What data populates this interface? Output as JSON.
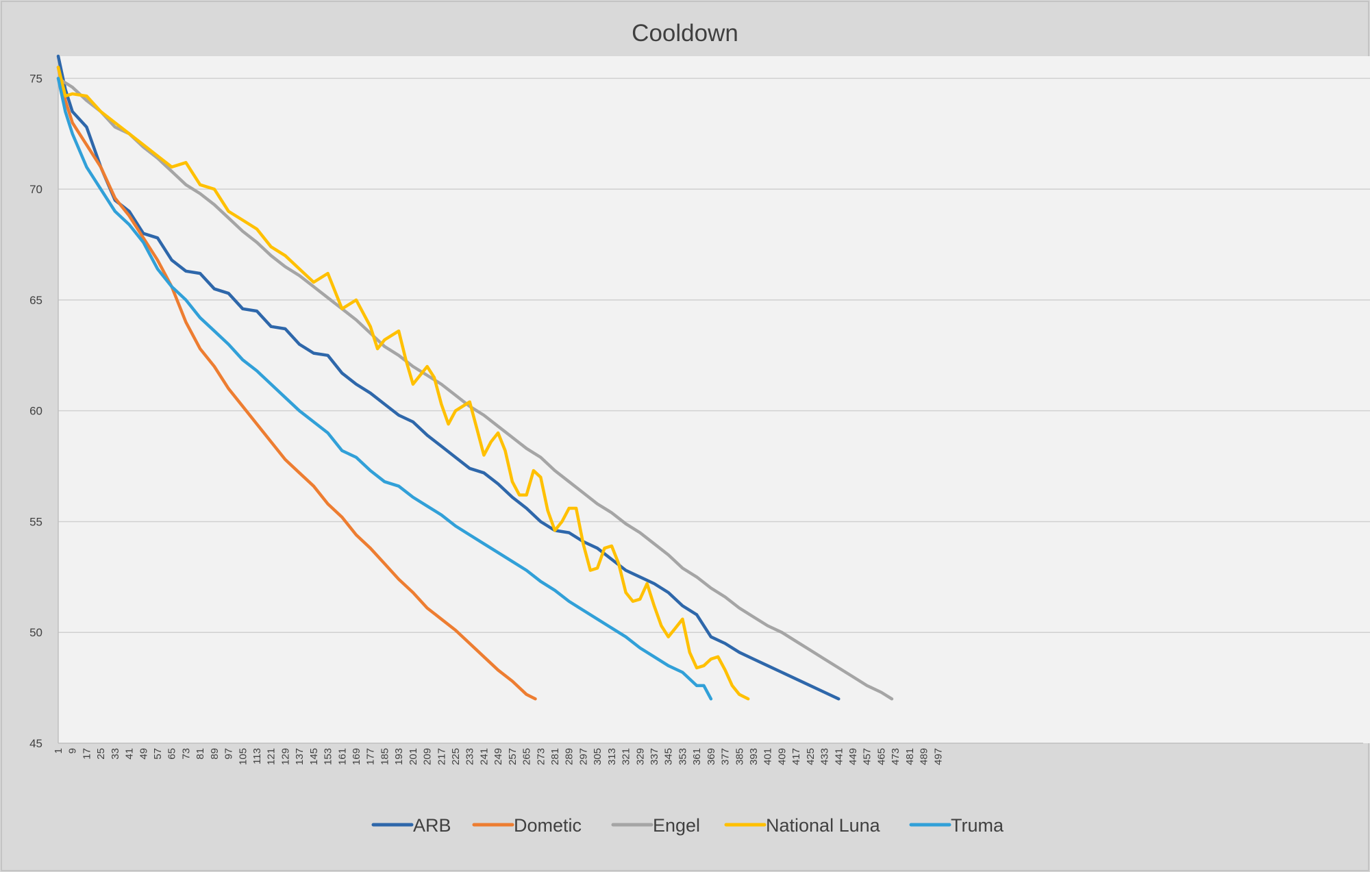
{
  "chart_data": {
    "type": "line",
    "title": "Cooldown",
    "xlabel": "",
    "ylabel": "",
    "xlim": [
      1,
      505
    ],
    "ylim": [
      45,
      76
    ],
    "y_ticks": [
      45,
      50,
      55,
      60,
      65,
      70,
      75
    ],
    "x_ticks": [
      1,
      9,
      17,
      25,
      33,
      41,
      49,
      57,
      65,
      73,
      81,
      89,
      97,
      105,
      113,
      121,
      129,
      137,
      145,
      153,
      161,
      169,
      177,
      185,
      193,
      201,
      209,
      217,
      225,
      233,
      241,
      249,
      257,
      265,
      273,
      281,
      289,
      297,
      305,
      313,
      321,
      329,
      337,
      345,
      353,
      361,
      369,
      377,
      385,
      393,
      401,
      409,
      417,
      425,
      433,
      441,
      449,
      457,
      465,
      473,
      481,
      489,
      497
    ],
    "grid": true,
    "legend_position": "bottom",
    "series": [
      {
        "name": "ARB",
        "color": "#2e67aa",
        "x": [
          1,
          5,
          9,
          17,
          25,
          33,
          41,
          49,
          57,
          65,
          73,
          81,
          89,
          97,
          105,
          113,
          121,
          129,
          137,
          145,
          153,
          161,
          169,
          177,
          185,
          193,
          201,
          209,
          217,
          225,
          233,
          241,
          249,
          257,
          265,
          273,
          281,
          289,
          297,
          305,
          313,
          321,
          329,
          337,
          345,
          353,
          361,
          369,
          377,
          385,
          393,
          401,
          409,
          417,
          425,
          433,
          441
        ],
        "y": [
          76,
          74.5,
          73.5,
          72.8,
          71,
          69.5,
          69,
          68,
          67.8,
          66.8,
          66.3,
          66.2,
          65.5,
          65.3,
          64.6,
          64.5,
          63.8,
          63.7,
          63,
          62.6,
          62.5,
          61.7,
          61.2,
          60.8,
          60.3,
          59.8,
          59.5,
          58.9,
          58.4,
          57.9,
          57.4,
          57.2,
          56.7,
          56.1,
          55.6,
          55,
          54.6,
          54.5,
          54.1,
          53.8,
          53.3,
          52.8,
          52.5,
          52.2,
          51.8,
          51.2,
          50.8,
          49.8,
          49.5,
          49.1,
          48.8,
          48.5,
          48.2,
          47.9,
          47.6,
          47.3,
          47
        ]
      },
      {
        "name": "Dometic",
        "color": "#ed7d31",
        "x": [
          1,
          5,
          9,
          17,
          25,
          33,
          41,
          49,
          57,
          65,
          73,
          81,
          89,
          97,
          105,
          113,
          121,
          129,
          137,
          145,
          153,
          161,
          169,
          177,
          185,
          193,
          201,
          209,
          217,
          225,
          233,
          241,
          249,
          257,
          265,
          270
        ],
        "y": [
          75.5,
          74,
          73,
          72,
          71,
          69.6,
          68.8,
          67.8,
          66.8,
          65.6,
          64,
          62.8,
          62,
          61,
          60.2,
          59.4,
          58.6,
          57.8,
          57.2,
          56.6,
          55.8,
          55.2,
          54.4,
          53.8,
          53.1,
          52.4,
          51.8,
          51.1,
          50.6,
          50.1,
          49.5,
          48.9,
          48.3,
          47.8,
          47.2,
          47
        ]
      },
      {
        "name": "Engel",
        "color": "#a5a5a5",
        "x": [
          1,
          9,
          17,
          25,
          33,
          41,
          49,
          57,
          65,
          73,
          81,
          89,
          97,
          105,
          113,
          121,
          129,
          137,
          145,
          153,
          161,
          169,
          177,
          185,
          193,
          201,
          209,
          217,
          225,
          233,
          241,
          249,
          257,
          265,
          273,
          281,
          289,
          297,
          305,
          313,
          321,
          329,
          337,
          345,
          353,
          361,
          369,
          377,
          385,
          393,
          401,
          409,
          417,
          425,
          433,
          441,
          449,
          457,
          465,
          471
        ],
        "y": [
          75,
          74.6,
          74,
          73.5,
          72.8,
          72.5,
          71.9,
          71.4,
          70.8,
          70.2,
          69.8,
          69.3,
          68.7,
          68.1,
          67.6,
          67,
          66.5,
          66.1,
          65.6,
          65.1,
          64.6,
          64.1,
          63.5,
          62.9,
          62.5,
          62,
          61.6,
          61.2,
          60.7,
          60.2,
          59.8,
          59.3,
          58.8,
          58.3,
          57.9,
          57.3,
          56.8,
          56.3,
          55.8,
          55.4,
          54.9,
          54.5,
          54,
          53.5,
          52.9,
          52.5,
          52,
          51.6,
          51.1,
          50.7,
          50.3,
          50,
          49.6,
          49.2,
          48.8,
          48.4,
          48,
          47.6,
          47.3,
          47
        ]
      },
      {
        "name": "National Luna",
        "color": "#ffc000",
        "x": [
          1,
          5,
          9,
          17,
          25,
          33,
          41,
          49,
          57,
          65,
          73,
          81,
          89,
          97,
          105,
          113,
          121,
          129,
          137,
          145,
          153,
          161,
          169,
          177,
          181,
          185,
          193,
          197,
          201,
          209,
          213,
          217,
          221,
          225,
          233,
          237,
          241,
          245,
          249,
          253,
          257,
          261,
          265,
          269,
          273,
          277,
          281,
          285,
          289,
          293,
          297,
          301,
          305,
          309,
          313,
          317,
          321,
          325,
          329,
          333,
          337,
          341,
          345,
          349,
          353,
          357,
          361,
          365,
          369,
          373,
          377,
          381,
          385,
          390
        ],
        "y": [
          75.5,
          74.2,
          74.3,
          74.2,
          73.5,
          73,
          72.5,
          72,
          71.5,
          71,
          71.2,
          70.2,
          70,
          69,
          68.6,
          68.2,
          67.4,
          67,
          66.4,
          65.8,
          66.2,
          64.6,
          65,
          63.8,
          62.8,
          63.2,
          63.6,
          62.3,
          61.2,
          62,
          61.5,
          60.3,
          59.4,
          60,
          60.4,
          59.2,
          58,
          58.6,
          59,
          58.2,
          56.8,
          56.2,
          56.2,
          57.3,
          57,
          55.5,
          54.6,
          55,
          55.6,
          55.6,
          54,
          52.8,
          52.9,
          53.8,
          53.9,
          53.1,
          51.8,
          51.4,
          51.5,
          52.2,
          51.2,
          50.3,
          49.8,
          50.2,
          50.6,
          49.1,
          48.4,
          48.5,
          48.8,
          48.9,
          48.3,
          47.6,
          47.2,
          47
        ]
      },
      {
        "name": "Truma",
        "color": "#31a0d8",
        "x": [
          1,
          5,
          9,
          17,
          25,
          33,
          41,
          49,
          57,
          65,
          73,
          81,
          89,
          97,
          105,
          113,
          121,
          129,
          137,
          145,
          153,
          161,
          169,
          177,
          185,
          193,
          201,
          209,
          217,
          225,
          233,
          241,
          249,
          257,
          265,
          273,
          281,
          289,
          297,
          305,
          313,
          321,
          329,
          337,
          345,
          353,
          361,
          365,
          369
        ],
        "y": [
          75,
          73.5,
          72.5,
          71,
          70,
          69,
          68.4,
          67.6,
          66.4,
          65.6,
          65,
          64.2,
          63.6,
          63,
          62.3,
          61.8,
          61.2,
          60.6,
          60,
          59.5,
          59,
          58.2,
          57.9,
          57.3,
          56.8,
          56.6,
          56.1,
          55.7,
          55.3,
          54.8,
          54.4,
          54,
          53.6,
          53.2,
          52.8,
          52.3,
          51.9,
          51.4,
          51,
          50.6,
          50.2,
          49.8,
          49.3,
          48.9,
          48.5,
          48.2,
          47.6,
          47.6,
          47
        ]
      }
    ]
  }
}
